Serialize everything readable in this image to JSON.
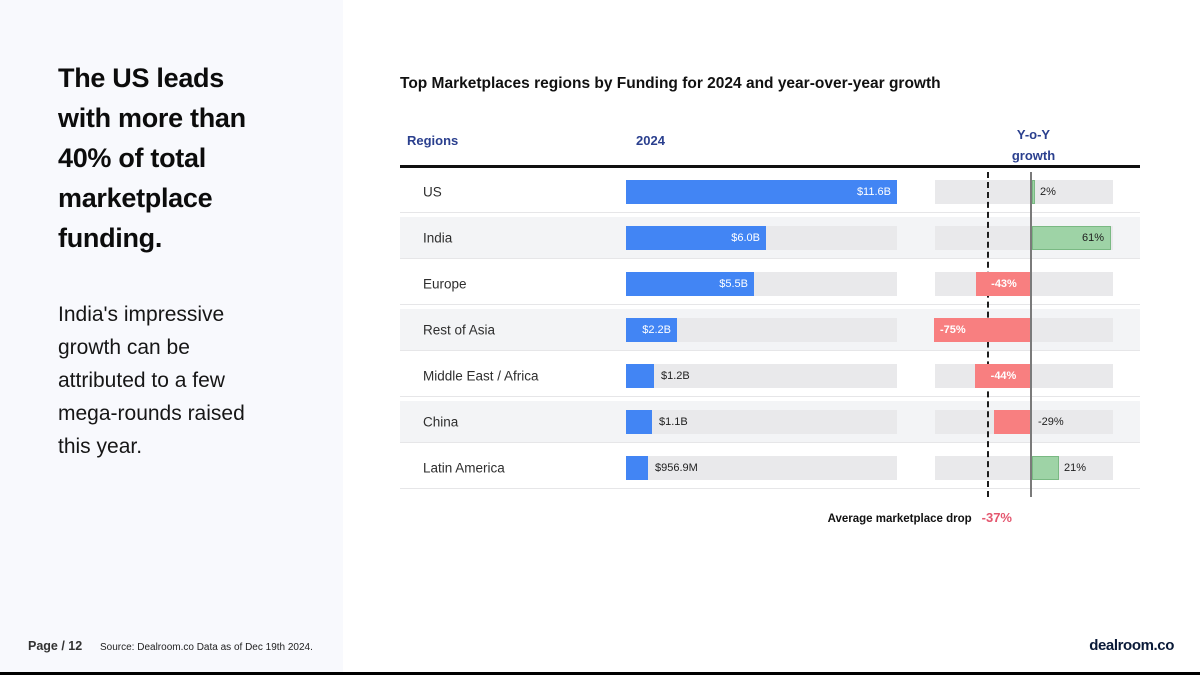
{
  "left_panel": {
    "heading": "The US leads\nwith more than\n40% of total\nmarketplace\nfunding.",
    "body": "India's impressive\ngrowth can be\nattributed to a few\nmega-rounds raised\nthis year.",
    "page_label": "Page / 12",
    "source": "Source: Dealroom.co  Data as of Dec 19th 2024."
  },
  "footer": {
    "logo": "dealroom.co"
  },
  "chart_data": {
    "type": "bar",
    "title": "Top Marketplaces regions by Funding for 2024 and year-over-year growth",
    "column_headers": {
      "regions": "Regions",
      "year": "2024",
      "growth": "Y-o-Y\ngrowth"
    },
    "categories": [
      "US",
      "India",
      "Europe",
      "Rest of Asia",
      "Middle East / Africa",
      "China",
      "Latin America"
    ],
    "series": [
      {
        "name": "Funding 2024",
        "unit": "USD billions",
        "values": [
          11.6,
          6.0,
          5.5,
          2.2,
          1.2,
          1.1,
          0.9569
        ]
      },
      {
        "name": "Y-o-Y growth",
        "unit": "percent",
        "values": [
          2,
          61,
          -43,
          -75,
          -44,
          -29,
          21
        ]
      }
    ],
    "rows": [
      {
        "region": "US",
        "funding": 11.6,
        "funding_label": "$11.6B",
        "funding_label_inside": true,
        "growth": 2,
        "growth_label": "2%",
        "growth_label_pos": "outside-right"
      },
      {
        "region": "India",
        "funding": 6.0,
        "funding_label": "$6.0B",
        "funding_label_inside": true,
        "growth": 61,
        "growth_label": "61%",
        "growth_label_pos": "inside-right"
      },
      {
        "region": "Europe",
        "funding": 5.5,
        "funding_label": "$5.5B",
        "funding_label_inside": true,
        "growth": -43,
        "growth_label": "-43%",
        "growth_label_pos": "center"
      },
      {
        "region": "Rest of Asia",
        "funding": 2.2,
        "funding_label": "$2.2B",
        "funding_label_inside": true,
        "growth": -75,
        "growth_label": "-75%",
        "growth_label_pos": "left"
      },
      {
        "region": "Middle East / Africa",
        "funding": 1.2,
        "funding_label": "$1.2B",
        "funding_label_inside": false,
        "growth": -44,
        "growth_label": "-44%",
        "growth_label_pos": "center"
      },
      {
        "region": "China",
        "funding": 1.1,
        "funding_label": "$1.1B",
        "funding_label_inside": false,
        "growth": -29,
        "growth_label": "-29%",
        "growth_label_pos": "outside-right"
      },
      {
        "region": "Latin America",
        "funding": 0.9569,
        "funding_label": "$956.9M",
        "funding_label_inside": false,
        "growth": 21,
        "growth_label": "21%",
        "growth_label_pos": "outside-right"
      }
    ],
    "funding_axis_max": 11.6,
    "growth_axis": {
      "min": -75,
      "max": 62,
      "zero_marker": true,
      "average_marker_pct": -37
    },
    "annotation": {
      "label": "Average marketplace drop",
      "value": "-37%"
    },
    "grid": false,
    "legend": "none"
  },
  "colors": {
    "accent_blue": "#4285f4",
    "positive_green": "#9ed3a6",
    "negative_red": "#f87f80",
    "header_navy": "#2a3f8e",
    "annotation_red": "#e4566e",
    "track_gray": "#e9e9eb",
    "stripe_gray": "#f3f4f6",
    "panel_bg": "#f8f9fd",
    "logo_navy": "#0a1a38"
  }
}
